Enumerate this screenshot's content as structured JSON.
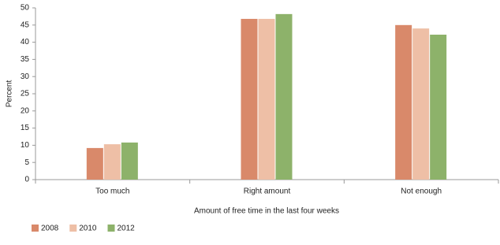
{
  "chart_data": {
    "type": "bar",
    "x_label": "Amount of free time in the last four weeks",
    "y_label": "Percent",
    "categories": [
      "Too much",
      "Right amount",
      "Not enough"
    ],
    "series": [
      {
        "name": "2008",
        "color": "#d9896a",
        "values": [
          9.2,
          46.8,
          45.0
        ]
      },
      {
        "name": "2010",
        "color": "#eebfa6",
        "values": [
          10.3,
          46.8,
          44.0
        ]
      },
      {
        "name": "2012",
        "color": "#8db26a",
        "values": [
          10.8,
          48.2,
          42.2
        ]
      }
    ],
    "ylim": [
      0,
      50
    ],
    "yticks": [
      0,
      5,
      10,
      15,
      20,
      25,
      30,
      35,
      40,
      45,
      50
    ],
    "grid": false
  }
}
